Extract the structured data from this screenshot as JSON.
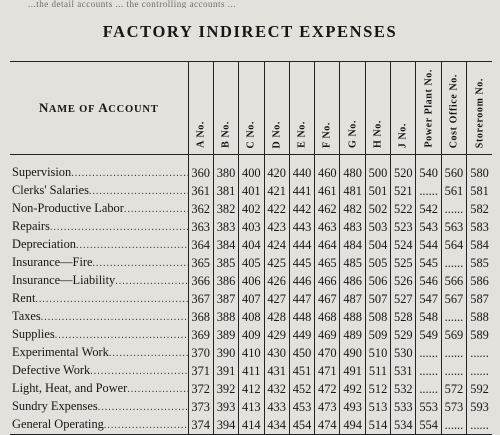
{
  "bleed_text": "...the detail accounts ... the controlling accounts ...",
  "title": "FACTORY INDIRECT EXPENSES",
  "account_header": {
    "first_letter_1": "N",
    "rest_1": "AME OF ",
    "first_letter_2": "A",
    "rest_2": "CCOUNT"
  },
  "columns": [
    "A No.",
    "B No.",
    "C No.",
    "D No.",
    "E No.",
    "F No.",
    "G No.",
    "H No.",
    "J No.",
    "Power Plant No.",
    "Cost Office No.",
    "Storeroom No."
  ],
  "rows": [
    {
      "name": "Supervision",
      "values": [
        "360",
        "380",
        "400",
        "420",
        "440",
        "460",
        "480",
        "500",
        "520",
        "540",
        "560",
        "580"
      ]
    },
    {
      "name": "Clerks' Salaries",
      "values": [
        "361",
        "381",
        "401",
        "421",
        "441",
        "461",
        "481",
        "501",
        "521",
        "......",
        "561",
        "581"
      ]
    },
    {
      "name": "Non-Productive Labor",
      "values": [
        "362",
        "382",
        "402",
        "422",
        "442",
        "462",
        "482",
        "502",
        "522",
        "542",
        "......",
        "582"
      ]
    },
    {
      "name": "Repairs",
      "values": [
        "363",
        "383",
        "403",
        "423",
        "443",
        "463",
        "483",
        "503",
        "523",
        "543",
        "563",
        "583"
      ]
    },
    {
      "name": "Depreciation",
      "values": [
        "364",
        "384",
        "404",
        "424",
        "444",
        "464",
        "484",
        "504",
        "524",
        "544",
        "564",
        "584"
      ]
    },
    {
      "name": "Insurance—Fire",
      "values": [
        "365",
        "385",
        "405",
        "425",
        "445",
        "465",
        "485",
        "505",
        "525",
        "545",
        "......",
        "585"
      ]
    },
    {
      "name": "Insurance—Liability",
      "values": [
        "366",
        "386",
        "406",
        "426",
        "446",
        "466",
        "486",
        "506",
        "526",
        "546",
        "566",
        "586"
      ]
    },
    {
      "name": "Rent",
      "values": [
        "367",
        "387",
        "407",
        "427",
        "447",
        "467",
        "487",
        "507",
        "527",
        "547",
        "567",
        "587"
      ]
    },
    {
      "name": "Taxes",
      "values": [
        "368",
        "388",
        "408",
        "428",
        "448",
        "468",
        "488",
        "508",
        "528",
        "548",
        "......",
        "588"
      ]
    },
    {
      "name": "Supplies",
      "values": [
        "369",
        "389",
        "409",
        "429",
        "449",
        "469",
        "489",
        "509",
        "529",
        "549",
        "569",
        "589"
      ]
    },
    {
      "name": "Experimental Work",
      "values": [
        "370",
        "390",
        "410",
        "430",
        "450",
        "470",
        "490",
        "510",
        "530",
        "......",
        "......",
        "......"
      ]
    },
    {
      "name": "Defective Work",
      "values": [
        "371",
        "391",
        "411",
        "431",
        "451",
        "471",
        "491",
        "511",
        "531",
        "......",
        "......",
        "......"
      ]
    },
    {
      "name": "Light, Heat, and Power",
      "values": [
        "372",
        "392",
        "412",
        "432",
        "452",
        "472",
        "492",
        "512",
        "532",
        "......",
        "572",
        "592"
      ]
    },
    {
      "name": "Sundry Expenses",
      "values": [
        "373",
        "393",
        "413",
        "433",
        "453",
        "473",
        "493",
        "513",
        "533",
        "553",
        "573",
        "593"
      ]
    },
    {
      "name": "General Operating",
      "values": [
        "374",
        "394",
        "414",
        "434",
        "454",
        "474",
        "494",
        "514",
        "534",
        "554",
        "......",
        "......"
      ]
    }
  ]
}
